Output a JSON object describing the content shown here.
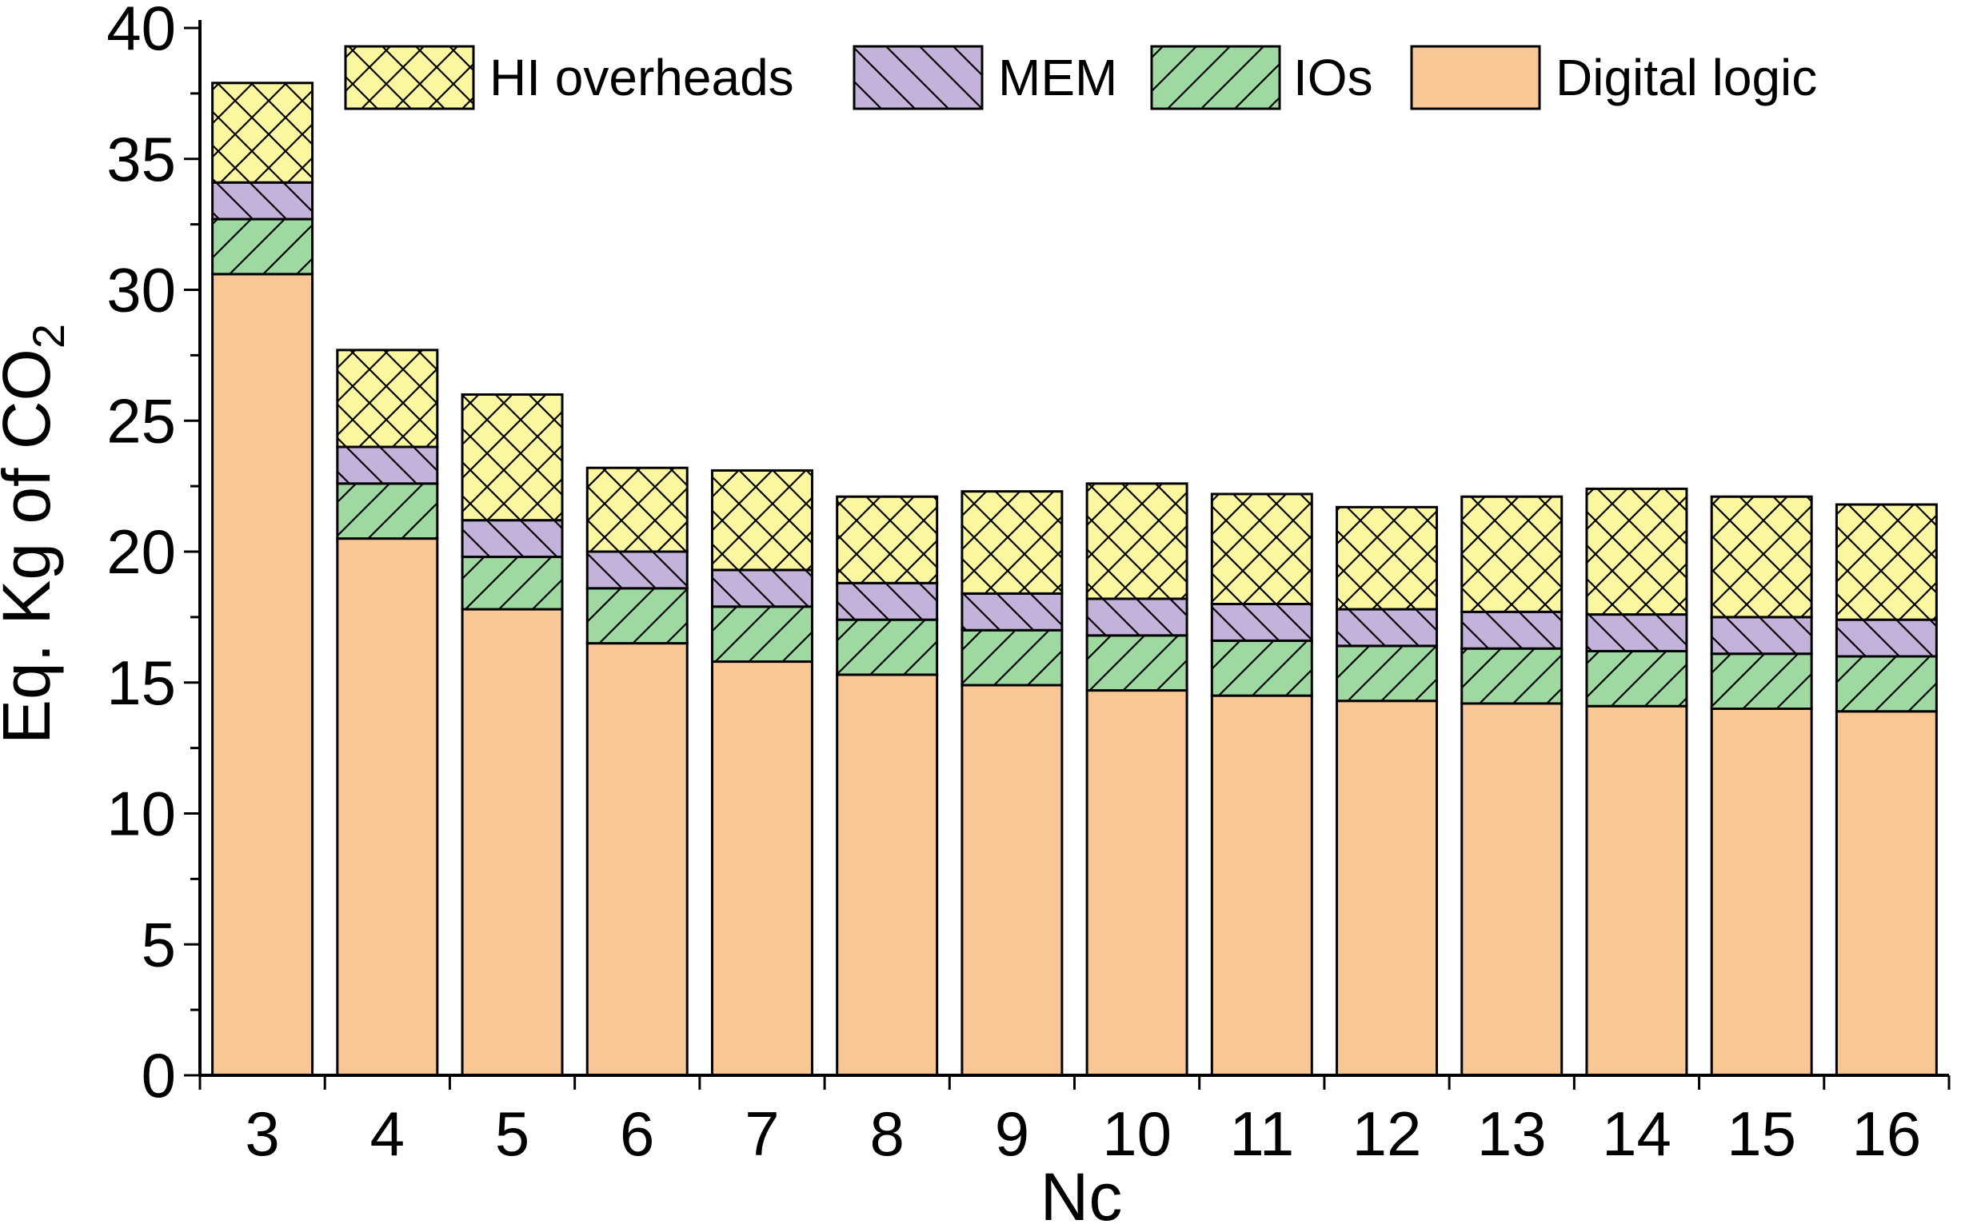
{
  "chart_data": {
    "type": "bar",
    "stacked": true,
    "categories": [
      "3",
      "4",
      "5",
      "6",
      "7",
      "8",
      "9",
      "10",
      "11",
      "12",
      "13",
      "14",
      "15",
      "16"
    ],
    "series": [
      {
        "name": "Digital logic",
        "color": "#f9c695",
        "pattern": "none",
        "values": [
          30.6,
          20.5,
          17.8,
          16.5,
          15.8,
          15.3,
          14.9,
          14.7,
          14.5,
          14.3,
          14.2,
          14.1,
          14.0,
          13.9
        ]
      },
      {
        "name": "IOs",
        "color": "#9fd9a1",
        "pattern": "diagonal-forward",
        "values": [
          2.1,
          2.1,
          2.0,
          2.1,
          2.1,
          2.1,
          2.1,
          2.1,
          2.1,
          2.1,
          2.1,
          2.1,
          2.1,
          2.1
        ]
      },
      {
        "name": "MEM",
        "color": "#c3b2da",
        "pattern": "diagonal-back",
        "values": [
          1.4,
          1.4,
          1.4,
          1.4,
          1.4,
          1.4,
          1.4,
          1.4,
          1.4,
          1.4,
          1.4,
          1.4,
          1.4,
          1.4
        ]
      },
      {
        "name": "HI overheads",
        "color": "#fbf7a1",
        "pattern": "crosshatch",
        "values": [
          3.8,
          3.7,
          4.8,
          3.2,
          3.8,
          3.3,
          3.9,
          4.4,
          4.2,
          3.9,
          4.4,
          4.8,
          4.6,
          4.4
        ]
      }
    ],
    "legend": {
      "order": [
        "HI overheads",
        "MEM",
        "IOs",
        "Digital logic"
      ],
      "placement": "top"
    },
    "title": "",
    "xlabel": "Nc",
    "ylabel_main": "Eq. Kg of CO",
    "ylabel_subscript": "2",
    "ylim": [
      0,
      40
    ],
    "yticks": [
      "0",
      "5",
      "10",
      "15",
      "20",
      "25",
      "30",
      "35",
      "40"
    ],
    "ytick_values": [
      0,
      5,
      10,
      15,
      20,
      25,
      30,
      35,
      40
    ],
    "grid": false
  }
}
